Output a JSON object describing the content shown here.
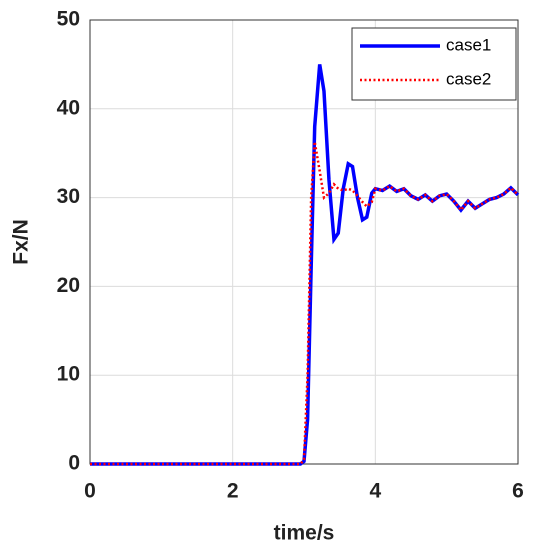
{
  "chart_data": {
    "type": "line",
    "xlabel": "time/s",
    "ylabel": "Fx/N",
    "x": [
      0,
      2.95,
      3.0,
      3.05,
      3.1,
      3.15,
      3.22,
      3.28,
      3.35,
      3.42,
      3.48,
      3.55,
      3.62,
      3.68,
      3.75,
      3.82,
      3.88,
      3.95,
      4.0,
      4.1,
      4.2,
      4.3,
      4.4,
      4.5,
      4.6,
      4.7,
      4.8,
      4.9,
      5.0,
      5.1,
      5.2,
      5.3,
      5.4,
      5.5,
      5.6,
      5.7,
      5.8,
      5.9,
      6.0
    ],
    "series": [
      {
        "name": "case1",
        "color": "#0000ff",
        "linestyle": "solid",
        "values": [
          0,
          0,
          0.3,
          5,
          22,
          38,
          45,
          42,
          32,
          25.3,
          26,
          31,
          33.8,
          33.5,
          30,
          27.5,
          27.8,
          30.5,
          31,
          30.8,
          31.3,
          30.7,
          31,
          30.2,
          29.8,
          30.3,
          29.6,
          30.2,
          30.4,
          29.6,
          28.6,
          29.6,
          28.8,
          29.3,
          29.8,
          30,
          30.4,
          31.1,
          30.3
        ]
      },
      {
        "name": "case2",
        "color": "#ff0000",
        "linestyle": "dotted",
        "values": [
          0,
          0,
          0.5,
          10,
          30,
          36.3,
          33,
          30,
          30.5,
          31.5,
          31,
          30.8,
          31,
          30.8,
          30.2,
          29.5,
          29,
          29.5,
          31,
          30.8,
          31.3,
          30.7,
          31,
          30.2,
          29.8,
          30.3,
          29.6,
          30.2,
          30.4,
          29.6,
          28.6,
          29.6,
          28.8,
          29.3,
          29.8,
          30,
          30.4,
          31.1,
          30.3
        ]
      }
    ],
    "xlim": [
      0,
      6
    ],
    "xticks": [
      0,
      2,
      4,
      6
    ],
    "ylim": [
      0,
      50
    ],
    "yticks": [
      0,
      10,
      20,
      30,
      40,
      50
    ],
    "grid": true,
    "legend": "upper right"
  }
}
